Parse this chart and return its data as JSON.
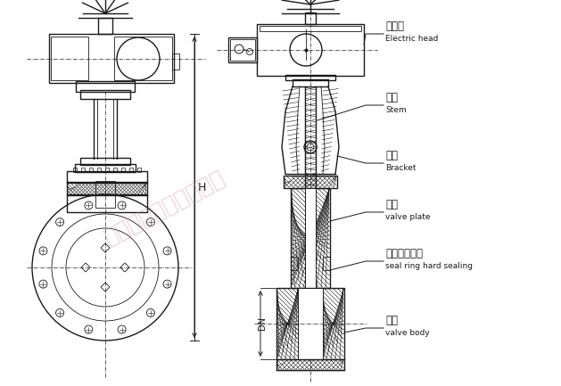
{
  "background_color": "#ffffff",
  "line_color": "#1a1a1a",
  "watermark_color": "#d4a0a0",
  "watermark_text": "上海湖泉阀门有限公司",
  "labels": {
    "electric_head_cn": "电动头",
    "electric_head_en": "Electric head",
    "stem_cn": "阀杆",
    "stem_en": "Stem",
    "bracket_cn": "支架",
    "bracket_en": "Bracket",
    "valve_plate_cn": "闸板",
    "valve_plate_en": "valve plate",
    "seal_cn": "密封圈硬密封",
    "seal_en": "seal ring hard sealing",
    "valve_body_cn": "阀体",
    "valve_body_en": "valve body"
  },
  "dim_label_H": "H",
  "dim_label_DN": "DN",
  "fig_width": 6.29,
  "fig_height": 4.33,
  "dpi": 100
}
